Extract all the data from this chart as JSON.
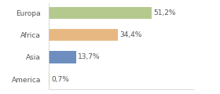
{
  "categories": [
    "Europa",
    "Africa",
    "Asia",
    "America"
  ],
  "values": [
    51.2,
    34.4,
    13.7,
    0.7
  ],
  "labels": [
    "51,2%",
    "34,4%",
    "13,7%",
    "0,7%"
  ],
  "bar_colors": [
    "#b5c98e",
    "#e8b883",
    "#6d8ebf",
    "#e8d87a"
  ],
  "background_color": "#ffffff",
  "xlim": [
    0,
    72
  ],
  "label_fontsize": 6.5,
  "tick_fontsize": 6.5,
  "bar_height": 0.55
}
